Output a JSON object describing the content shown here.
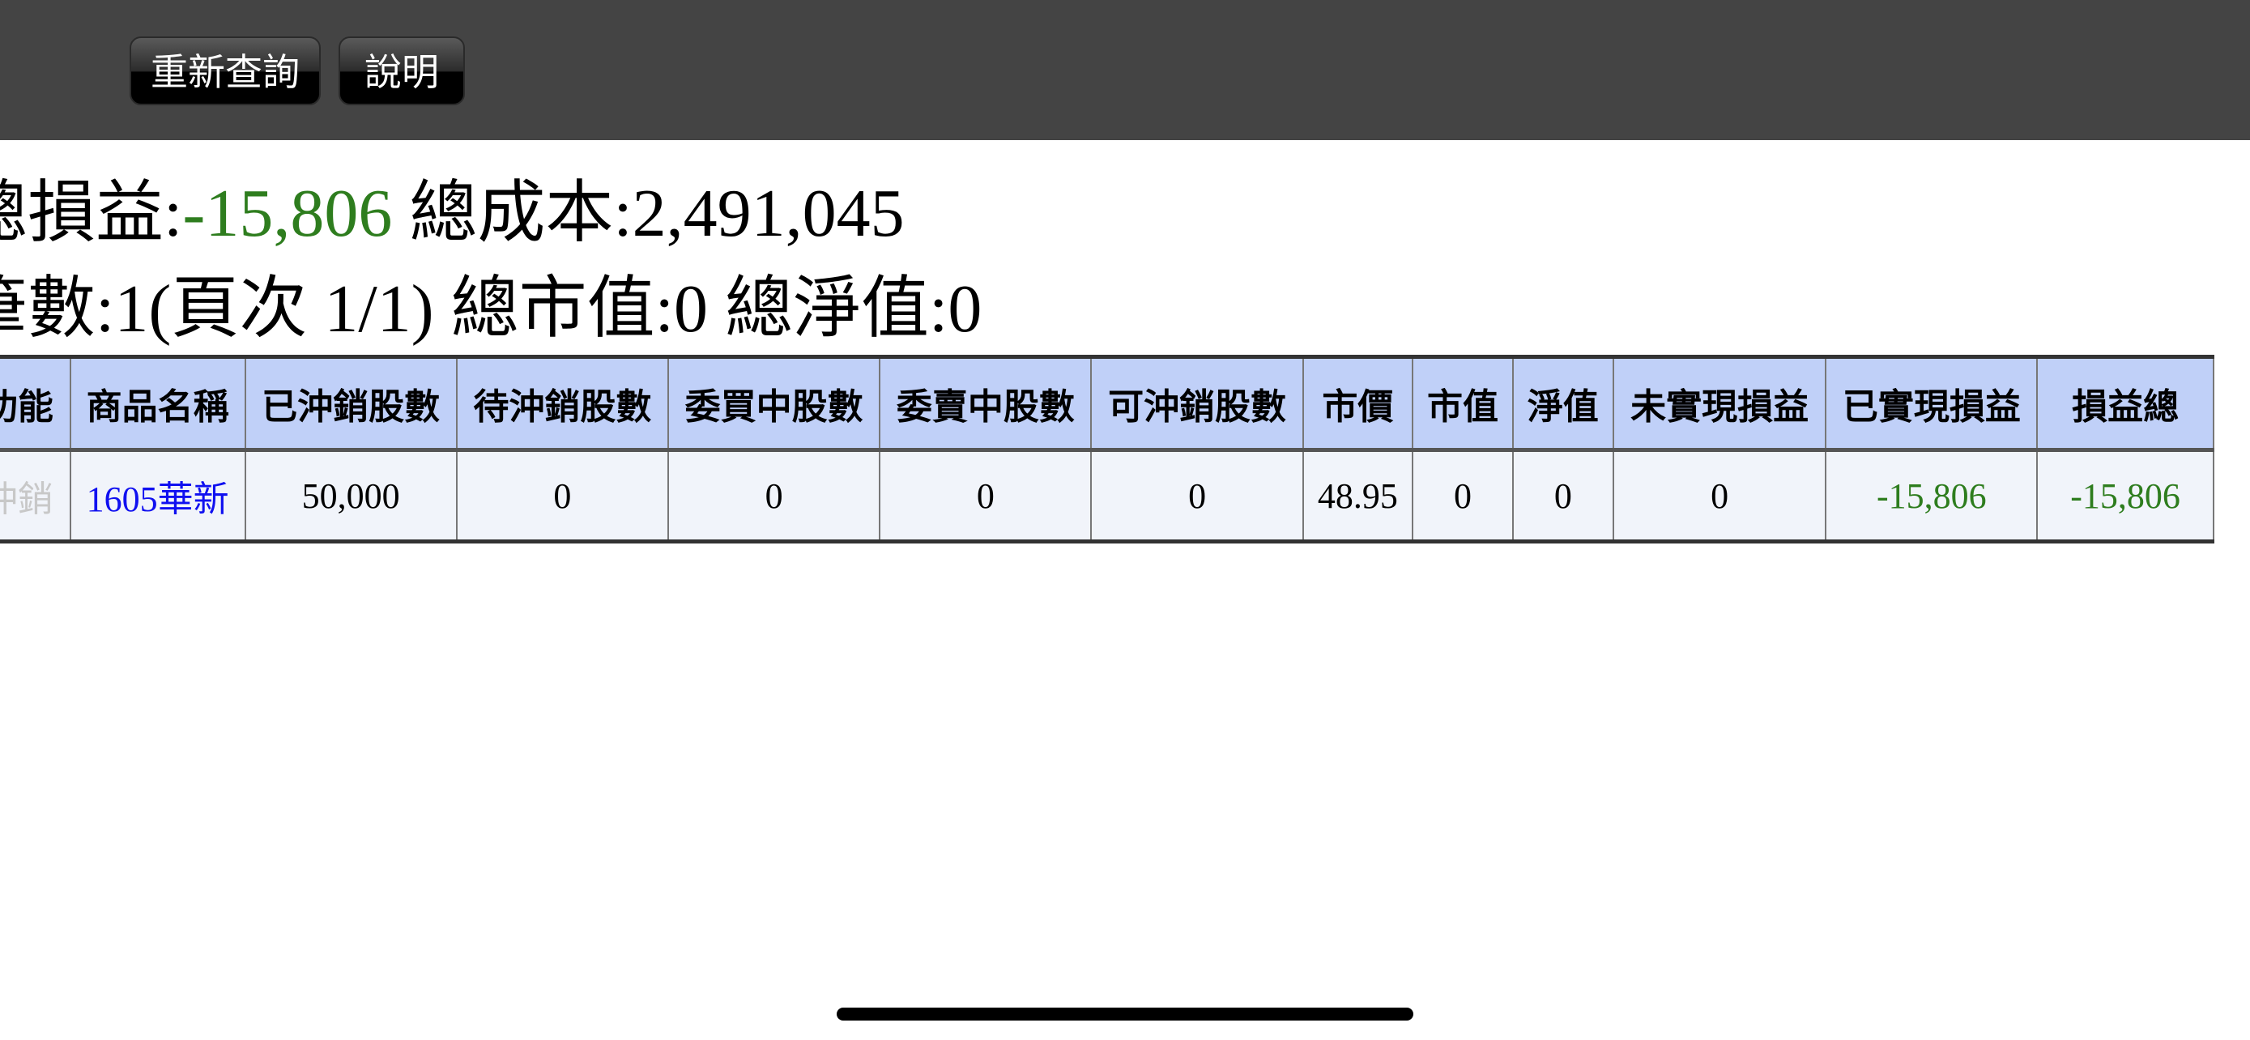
{
  "toolbar": {
    "requery_label": "重新查詢",
    "help_label": "說明"
  },
  "summary": {
    "total_pl_label": "總損益:",
    "total_pl_value": "-15,806",
    "total_cost_label": "總成本:",
    "total_cost_value": "2,491,045",
    "count_label": "總筆數:",
    "count_value": "1",
    "page_text": "(頁次 1/1)",
    "market_value_label": "總市值:",
    "market_value_value": "0",
    "net_value_label": "總淨值:",
    "net_value_value": "0"
  },
  "table": {
    "headers": [
      "功能",
      "商品名稱",
      "已沖銷股數",
      "待沖銷股數",
      "委買中股數",
      "委賣中股數",
      "可沖銷股數",
      "市價",
      "市值",
      "淨值",
      "未實現損益",
      "已實現損益",
      "損益總"
    ],
    "rows": [
      [
        "沖銷",
        "1605華新",
        "50,000",
        "0",
        "0",
        "0",
        "0",
        "48.95",
        "0",
        "0",
        "0",
        "-15,806",
        "-15,806"
      ]
    ]
  },
  "colors": {
    "negative": "#2e7d1e",
    "header_bg": "#c0d0f8",
    "link": "#1010f0"
  }
}
